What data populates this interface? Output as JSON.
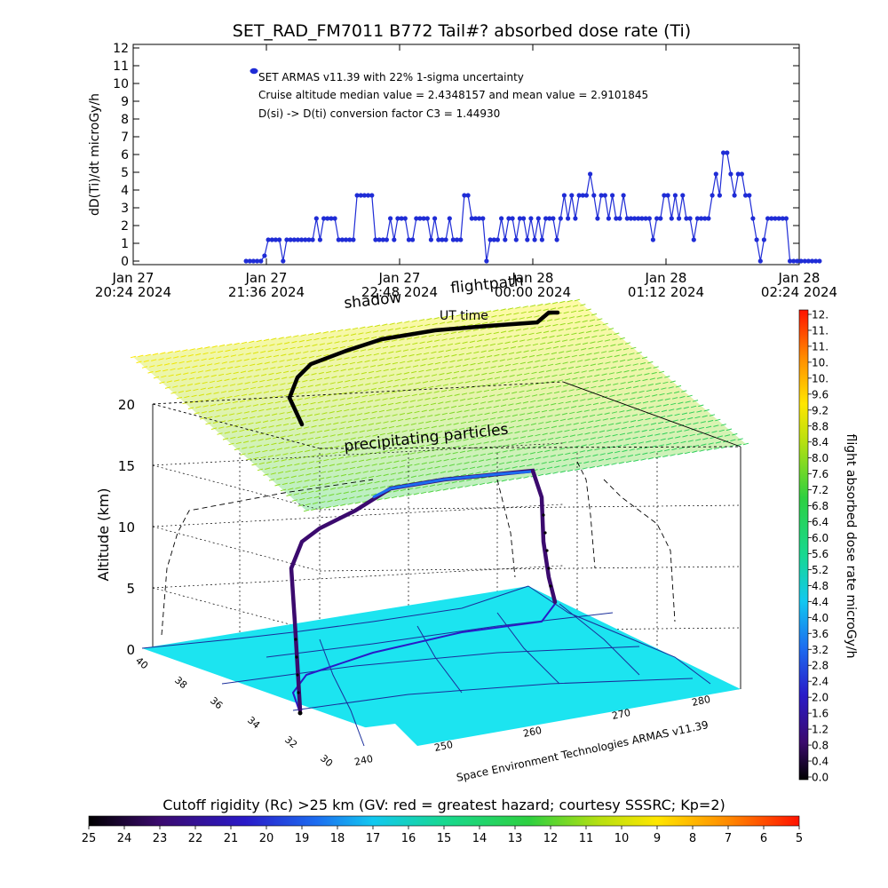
{
  "title": "SET_RAD_FM7011  B772 Tail#? absorbed dose rate (Ti)",
  "time_series": {
    "type": "scatter",
    "ylabel": "dD(Ti)/dt microGy/h",
    "ylim": [
      0,
      12
    ],
    "y_ticks": [
      "0",
      "1",
      "2",
      "3",
      "4",
      "5",
      "6",
      "7",
      "8",
      "9",
      "10",
      "11",
      "12"
    ],
    "x_ticks": [
      {
        "l1": "Jan 27",
        "l2": "20:24 2024"
      },
      {
        "l1": "Jan 27",
        "l2": "21:36 2024"
      },
      {
        "l1": "Jan 27",
        "l2": "22:48 2024"
      },
      {
        "l1": "Jan 28",
        "l2": "00:00 2024"
      },
      {
        "l1": "Jan 28",
        "l2": "01:12 2024"
      },
      {
        "l1": "Jan 28",
        "l2": "02:24 2024"
      }
    ],
    "xlim": [
      "2024-01-27 20:24",
      "2024-01-28 02:24"
    ],
    "series_color": "#1f2cd6",
    "annotations": [
      "SET ARMAS v11.39 with 22% 1-sigma uncertainty",
      "Cruise altitude median value = 2.4348157 and mean value = 2.9101845",
      "D(si) -> D(ti) conversion factor C3 = 1.44930"
    ],
    "points": [
      [
        "2024-01-27 21:25",
        0
      ],
      [
        "2024-01-27 21:27",
        0
      ],
      [
        "2024-01-27 21:29",
        0
      ],
      [
        "2024-01-27 21:31",
        0
      ],
      [
        "2024-01-27 21:33",
        0
      ],
      [
        "2024-01-27 21:35",
        0.3
      ],
      [
        "2024-01-27 21:37",
        1.2
      ],
      [
        "2024-01-27 21:39",
        1.2
      ],
      [
        "2024-01-27 21:41",
        1.2
      ],
      [
        "2024-01-27 21:43",
        1.2
      ],
      [
        "2024-01-27 21:45",
        0
      ],
      [
        "2024-01-27 21:47",
        1.2
      ],
      [
        "2024-01-27 21:49",
        1.2
      ],
      [
        "2024-01-27 21:51",
        1.2
      ],
      [
        "2024-01-27 21:53",
        1.2
      ],
      [
        "2024-01-27 21:55",
        1.2
      ],
      [
        "2024-01-27 21:57",
        1.2
      ],
      [
        "2024-01-27 21:59",
        1.2
      ],
      [
        "2024-01-27 22:01",
        1.2
      ],
      [
        "2024-01-27 22:03",
        2.4
      ],
      [
        "2024-01-27 22:05",
        1.2
      ],
      [
        "2024-01-27 22:07",
        2.4
      ],
      [
        "2024-01-27 22:09",
        2.4
      ],
      [
        "2024-01-27 22:11",
        2.4
      ],
      [
        "2024-01-27 22:13",
        2.4
      ],
      [
        "2024-01-27 22:15",
        1.2
      ],
      [
        "2024-01-27 22:17",
        1.2
      ],
      [
        "2024-01-27 22:19",
        1.2
      ],
      [
        "2024-01-27 22:21",
        1.2
      ],
      [
        "2024-01-27 22:23",
        1.2
      ],
      [
        "2024-01-27 22:25",
        3.7
      ],
      [
        "2024-01-27 22:27",
        3.7
      ],
      [
        "2024-01-27 22:29",
        3.7
      ],
      [
        "2024-01-27 22:31",
        3.7
      ],
      [
        "2024-01-27 22:33",
        3.7
      ],
      [
        "2024-01-27 22:35",
        1.2
      ],
      [
        "2024-01-27 22:37",
        1.2
      ],
      [
        "2024-01-27 22:39",
        1.2
      ],
      [
        "2024-01-27 22:41",
        1.2
      ],
      [
        "2024-01-27 22:43",
        2.4
      ],
      [
        "2024-01-27 22:45",
        1.2
      ],
      [
        "2024-01-27 22:47",
        2.4
      ],
      [
        "2024-01-27 22:49",
        2.4
      ],
      [
        "2024-01-27 22:51",
        2.4
      ],
      [
        "2024-01-27 22:53",
        1.2
      ],
      [
        "2024-01-27 22:55",
        1.2
      ],
      [
        "2024-01-27 22:57",
        2.4
      ],
      [
        "2024-01-27 22:59",
        2.4
      ],
      [
        "2024-01-27 23:01",
        2.4
      ],
      [
        "2024-01-27 23:03",
        2.4
      ],
      [
        "2024-01-27 23:05",
        1.2
      ],
      [
        "2024-01-27 23:07",
        2.4
      ],
      [
        "2024-01-27 23:09",
        1.2
      ],
      [
        "2024-01-27 23:11",
        1.2
      ],
      [
        "2024-01-27 23:13",
        1.2
      ],
      [
        "2024-01-27 23:15",
        2.4
      ],
      [
        "2024-01-27 23:17",
        1.2
      ],
      [
        "2024-01-27 23:19",
        1.2
      ],
      [
        "2024-01-27 23:21",
        1.2
      ],
      [
        "2024-01-27 23:23",
        3.7
      ],
      [
        "2024-01-27 23:25",
        3.7
      ],
      [
        "2024-01-27 23:27",
        2.4
      ],
      [
        "2024-01-27 23:29",
        2.4
      ],
      [
        "2024-01-27 23:31",
        2.4
      ],
      [
        "2024-01-27 23:33",
        2.4
      ],
      [
        "2024-01-27 23:35",
        0
      ],
      [
        "2024-01-27 23:37",
        1.2
      ],
      [
        "2024-01-27 23:39",
        1.2
      ],
      [
        "2024-01-27 23:41",
        1.2
      ],
      [
        "2024-01-27 23:43",
        2.4
      ],
      [
        "2024-01-27 23:45",
        1.2
      ],
      [
        "2024-01-27 23:47",
        2.4
      ],
      [
        "2024-01-27 23:49",
        2.4
      ],
      [
        "2024-01-27 23:51",
        1.2
      ],
      [
        "2024-01-27 23:53",
        2.4
      ],
      [
        "2024-01-27 23:55",
        2.4
      ],
      [
        "2024-01-27 23:57",
        1.2
      ],
      [
        "2024-01-27 23:59",
        2.4
      ],
      [
        "2024-01-28 00:01",
        1.2
      ],
      [
        "2024-01-28 00:03",
        2.4
      ],
      [
        "2024-01-28 00:05",
        1.2
      ],
      [
        "2024-01-28 00:07",
        2.4
      ],
      [
        "2024-01-28 00:09",
        2.4
      ],
      [
        "2024-01-28 00:11",
        2.4
      ],
      [
        "2024-01-28 00:13",
        1.2
      ],
      [
        "2024-01-28 00:15",
        2.4
      ],
      [
        "2024-01-28 00:17",
        3.7
      ],
      [
        "2024-01-28 00:19",
        2.4
      ],
      [
        "2024-01-28 00:21",
        3.7
      ],
      [
        "2024-01-28 00:23",
        2.4
      ],
      [
        "2024-01-28 00:25",
        3.7
      ],
      [
        "2024-01-28 00:27",
        3.7
      ],
      [
        "2024-01-28 00:29",
        3.7
      ],
      [
        "2024-01-28 00:31",
        4.9
      ],
      [
        "2024-01-28 00:33",
        3.7
      ],
      [
        "2024-01-28 00:35",
        2.4
      ],
      [
        "2024-01-28 00:37",
        3.7
      ],
      [
        "2024-01-28 00:39",
        3.7
      ],
      [
        "2024-01-28 00:41",
        2.4
      ],
      [
        "2024-01-28 00:43",
        3.7
      ],
      [
        "2024-01-28 00:45",
        2.4
      ],
      [
        "2024-01-28 00:47",
        2.4
      ],
      [
        "2024-01-28 00:49",
        3.7
      ],
      [
        "2024-01-28 00:51",
        2.4
      ],
      [
        "2024-01-28 00:53",
        2.4
      ],
      [
        "2024-01-28 00:55",
        2.4
      ],
      [
        "2024-01-28 00:57",
        2.4
      ],
      [
        "2024-01-28 00:59",
        2.4
      ],
      [
        "2024-01-28 01:01",
        2.4
      ],
      [
        "2024-01-28 01:03",
        2.4
      ],
      [
        "2024-01-28 01:05",
        1.2
      ],
      [
        "2024-01-28 01:07",
        2.4
      ],
      [
        "2024-01-28 01:09",
        2.4
      ],
      [
        "2024-01-28 01:11",
        3.7
      ],
      [
        "2024-01-28 01:13",
        3.7
      ],
      [
        "2024-01-28 01:15",
        2.4
      ],
      [
        "2024-01-28 01:17",
        3.7
      ],
      [
        "2024-01-28 01:19",
        2.4
      ],
      [
        "2024-01-28 01:21",
        3.7
      ],
      [
        "2024-01-28 01:23",
        2.4
      ],
      [
        "2024-01-28 01:25",
        2.4
      ],
      [
        "2024-01-28 01:27",
        1.2
      ],
      [
        "2024-01-28 01:29",
        2.4
      ],
      [
        "2024-01-28 01:31",
        2.4
      ],
      [
        "2024-01-28 01:33",
        2.4
      ],
      [
        "2024-01-28 01:35",
        2.4
      ],
      [
        "2024-01-28 01:37",
        3.7
      ],
      [
        "2024-01-28 01:39",
        4.9
      ],
      [
        "2024-01-28 01:41",
        3.7
      ],
      [
        "2024-01-28 01:43",
        6.1
      ],
      [
        "2024-01-28 01:45",
        6.1
      ],
      [
        "2024-01-28 01:47",
        4.9
      ],
      [
        "2024-01-28 01:49",
        3.7
      ],
      [
        "2024-01-28 01:51",
        4.9
      ],
      [
        "2024-01-28 01:53",
        4.9
      ],
      [
        "2024-01-28 01:55",
        3.7
      ],
      [
        "2024-01-28 01:57",
        3.7
      ],
      [
        "2024-01-28 01:59",
        2.4
      ],
      [
        "2024-01-28 02:01",
        1.2
      ],
      [
        "2024-01-28 02:03",
        0
      ],
      [
        "2024-01-28 02:05",
        1.2
      ],
      [
        "2024-01-28 02:07",
        2.4
      ],
      [
        "2024-01-28 02:09",
        2.4
      ],
      [
        "2024-01-28 02:11",
        2.4
      ],
      [
        "2024-01-28 02:13",
        2.4
      ],
      [
        "2024-01-28 02:15",
        2.4
      ],
      [
        "2024-01-28 02:17",
        2.4
      ],
      [
        "2024-01-28 02:19",
        0
      ],
      [
        "2024-01-28 02:21",
        0
      ],
      [
        "2024-01-28 02:23",
        0
      ],
      [
        "2024-01-28 02:25",
        0
      ],
      [
        "2024-01-28 02:27",
        0
      ],
      [
        "2024-01-28 02:29",
        0
      ],
      [
        "2024-01-28 02:31",
        0
      ],
      [
        "2024-01-28 02:33",
        0
      ],
      [
        "2024-01-28 02:35",
        0
      ]
    ]
  },
  "perspective_plot": {
    "type": "scatter",
    "z_label": "Altitude (km)",
    "z_ticks": [
      "0",
      "5",
      "10",
      "15",
      "20"
    ],
    "lat_ticks": [
      "40",
      "38",
      "36",
      "34",
      "32",
      "30"
    ],
    "lon_ticks": [
      "240",
      "250",
      "260",
      "270",
      "280"
    ],
    "labels": {
      "shadow": "shadow",
      "flightpath": "flightpath",
      "ut_time": "UT time",
      "precipitating": "precipitating particles",
      "credit": "Space Environment Technologies ARMAS v11.39"
    },
    "colors": {
      "map_fill": "#1ce4f0",
      "coast": "#1a2e9b",
      "particles_top": "#ffe800",
      "particles_bottom": "#2ed05a"
    }
  },
  "right_colorbar": {
    "label": "flight absorbed dose rate microGy/h",
    "ticks": [
      "0.0",
      "0.4",
      "0.8",
      "1.2",
      "1.6",
      "2.0",
      "2.4",
      "2.8",
      "3.2",
      "3.6",
      "4.0",
      "4.4",
      "4.8",
      "5.2",
      "5.6",
      "6.0",
      "6.4",
      "6.8",
      "7.2",
      "7.6",
      "8.0",
      "8.4",
      "8.8",
      "9.2",
      "9.6",
      "10.",
      "10.",
      "11.",
      "11.",
      "12."
    ]
  },
  "bottom_colorbar": {
    "label": "Cutoff rigidity (Rc) >25 km (GV: red = greatest hazard; courtesy SSSRC; Kp=2)",
    "ticks": [
      "25",
      "24",
      "23",
      "22",
      "21",
      "20",
      "19",
      "18",
      "17",
      "16",
      "15",
      "14",
      "13",
      "12",
      "11",
      "10",
      "9",
      "8",
      "7",
      "6",
      "5"
    ]
  }
}
